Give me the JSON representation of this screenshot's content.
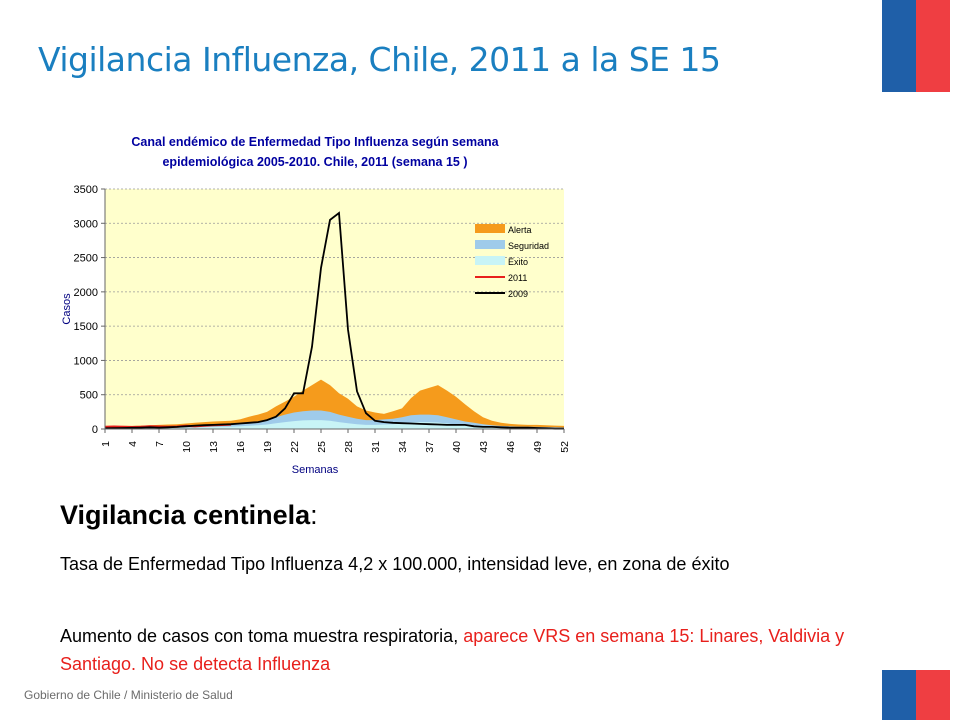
{
  "slide": {
    "title": "Vigilancia Influenza, Chile, 2011 a la SE 15",
    "section_heading": "Vigilancia centinela",
    "section_colon": ":",
    "para1": "Tasa de Enfermedad Tipo Influenza 4,2 x 100.000, intensidad leve, en zona de éxito",
    "para2_black": "Aumento de casos con toma muestra respiratoria, ",
    "para2_red": "aparece VRS en semana 15: Linares, Valdivia y Santiago. No se detecta Influenza",
    "footer": "Gobierno de Chile / Ministerio de Salud",
    "colors": {
      "title": "#1a7fc0",
      "flag_blue": "#1f5fa8",
      "flag_red": "#ef3e42",
      "highlight_red": "#e8201c"
    }
  },
  "chart_data": {
    "type": "area",
    "title_line1": "Canal  endémico de Enfermedad Tipo Influenza según semana",
    "title_line2": "epidemiológica 2005-2010.  Chile, 2011 (semana 15 )",
    "xlabel": "Semanas",
    "ylabel": "Casos",
    "ylim": [
      0,
      3500
    ],
    "y_ticks": [
      0,
      500,
      1000,
      1500,
      2000,
      2500,
      3000,
      3500
    ],
    "x_ticks": [
      1,
      4,
      7,
      10,
      13,
      16,
      19,
      22,
      25,
      28,
      31,
      34,
      37,
      40,
      43,
      46,
      49,
      52
    ],
    "grid": true,
    "legend_position": "right",
    "plot_background": "#ffffcc",
    "series": [
      {
        "name": "Alerta",
        "color": "#f59b1c",
        "values": [
          40,
          40,
          45,
          45,
          50,
          55,
          60,
          65,
          70,
          80,
          90,
          100,
          110,
          115,
          120,
          140,
          180,
          210,
          250,
          330,
          400,
          470,
          560,
          640,
          720,
          640,
          520,
          440,
          330,
          270,
          240,
          220,
          260,
          300,
          450,
          560,
          600,
          640,
          560,
          470,
          360,
          260,
          170,
          120,
          90,
          75,
          65,
          60,
          60,
          55,
          50,
          45
        ]
      },
      {
        "name": "Seguridad",
        "color": "#9fcbea",
        "values": [
          20,
          22,
          24,
          25,
          28,
          30,
          32,
          35,
          38,
          45,
          50,
          55,
          60,
          65,
          70,
          80,
          95,
          110,
          130,
          170,
          210,
          240,
          260,
          270,
          270,
          250,
          210,
          180,
          150,
          130,
          130,
          140,
          150,
          170,
          200,
          210,
          210,
          200,
          170,
          140,
          110,
          90,
          70,
          55,
          45,
          40,
          35,
          32,
          30,
          28,
          25,
          22
        ]
      },
      {
        "name": "Éxito",
        "color": "#c8f4f6",
        "values": [
          10,
          11,
          12,
          12,
          14,
          15,
          16,
          18,
          20,
          22,
          25,
          28,
          30,
          33,
          35,
          40,
          48,
          55,
          65,
          85,
          100,
          115,
          125,
          130,
          130,
          120,
          100,
          85,
          70,
          60,
          60,
          65,
          70,
          80,
          95,
          100,
          100,
          95,
          80,
          65,
          55,
          45,
          35,
          28,
          22,
          20,
          18,
          16,
          15,
          14,
          12,
          11
        ]
      },
      {
        "name": "2011",
        "color": "#e8201c",
        "values": [
          30,
          35,
          30,
          28,
          32,
          40,
          35,
          30,
          35,
          45,
          40,
          50,
          55,
          60,
          65
        ]
      },
      {
        "name": "2009",
        "color": "#000000",
        "values": [
          10,
          12,
          15,
          18,
          20,
          25,
          20,
          25,
          30,
          40,
          50,
          55,
          60,
          65,
          70,
          80,
          90,
          100,
          130,
          180,
          300,
          520,
          520,
          1200,
          2350,
          3050,
          3150,
          1450,
          550,
          230,
          120,
          100,
          90,
          85,
          80,
          75,
          70,
          65,
          60,
          60,
          60,
          40,
          30,
          30,
          25,
          20,
          20,
          20,
          15,
          10,
          5,
          5
        ]
      }
    ]
  }
}
